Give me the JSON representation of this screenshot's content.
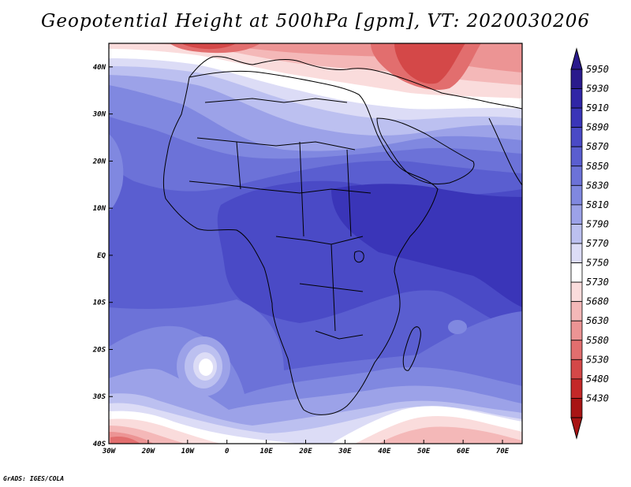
{
  "title": "Geopotential Height at 500hPa [gpm], VT: 2020030206",
  "credit": "GrADS: IGES/COLA",
  "axes": {
    "lon_labels": [
      "30W",
      "20W",
      "10W",
      "0",
      "10E",
      "20E",
      "30E",
      "40E",
      "50E",
      "60E",
      "70E"
    ],
    "lon_values": [
      -30,
      -20,
      -10,
      0,
      10,
      20,
      30,
      40,
      50,
      60,
      70
    ],
    "lat_labels": [
      "40N",
      "30N",
      "20N",
      "10N",
      "EQ",
      "10S",
      "20S",
      "30S",
      "40S"
    ],
    "lat_values": [
      40,
      30,
      20,
      10,
      0,
      -10,
      -20,
      -30,
      -40
    ],
    "lon_range": [
      -30,
      75
    ],
    "lat_range": [
      -40,
      45
    ]
  },
  "colorbar": {
    "levels": [
      "5950",
      "5930",
      "5910",
      "5890",
      "5870",
      "5850",
      "5830",
      "5810",
      "5790",
      "5770",
      "5750",
      "5730",
      "5680",
      "5630",
      "5580",
      "5530",
      "5480",
      "5430"
    ],
    "colors": [
      "#2a1a8c",
      "#3026a6",
      "#3a35b8",
      "#4a4ac6",
      "#5a5ed0",
      "#6c72d8",
      "#8088e0",
      "#9ca2e8",
      "#bcc0f0",
      "#dcdcf6",
      "#ffffff",
      "#fadcdc",
      "#f4b8b8",
      "#ec9494",
      "#e26e6e",
      "#d44848",
      "#c42828",
      "#a81414"
    ]
  },
  "chart_data": {
    "type": "heatmap",
    "variable": "Geopotential Height at 500hPa",
    "units": "gpm",
    "valid_time": "2020030206",
    "region": {
      "lon": [
        -30,
        75
      ],
      "lat": [
        -40,
        45
      ]
    },
    "color_levels": [
      5430,
      5480,
      5530,
      5580,
      5630,
      5680,
      5730,
      5750,
      5770,
      5790,
      5810,
      5830,
      5850,
      5870,
      5890,
      5910,
      5930,
      5950
    ],
    "features": [
      {
        "lat": 44,
        "lon": 10,
        "value": 5530
      },
      {
        "lat": 42,
        "lon": 45,
        "value": 5580
      },
      {
        "lat": 35,
        "lon": 30,
        "value": 5680
      },
      {
        "lat": 30,
        "lon": 0,
        "value": 5750
      },
      {
        "lat": 25,
        "lon": 20,
        "value": 5810
      },
      {
        "lat": 15,
        "lon": 20,
        "value": 5870
      },
      {
        "lat": 0,
        "lon": 25,
        "value": 5890
      },
      {
        "lat": 0,
        "lon": 60,
        "value": 5910
      },
      {
        "lat": -10,
        "lon": 15,
        "value": 5890
      },
      {
        "lat": -22,
        "lon": -5,
        "value": 5770
      },
      {
        "lat": -25,
        "lon": 20,
        "value": 5850
      },
      {
        "lat": -32,
        "lon": 50,
        "value": 5730
      },
      {
        "lat": -40,
        "lon": -25,
        "value": 5530
      },
      {
        "lat": -38,
        "lon": 60,
        "value": 5680
      }
    ]
  }
}
